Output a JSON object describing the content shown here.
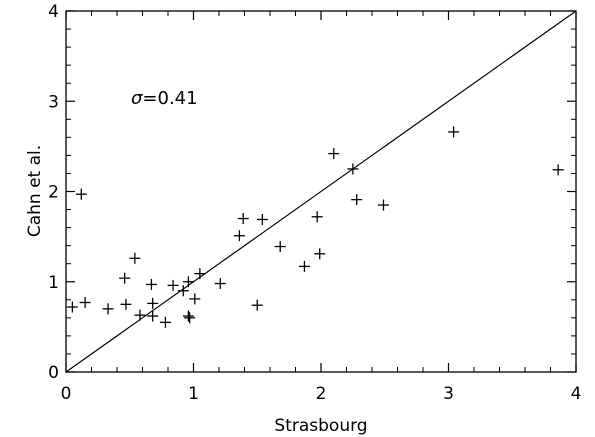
{
  "chart_data": {
    "type": "scatter",
    "xlabel": "Strasbourg",
    "ylabel": "Cahn et al.",
    "xlim": [
      0,
      4
    ],
    "ylim": [
      0,
      4
    ],
    "xticks": [
      "0",
      "1",
      "2",
      "3",
      "4"
    ],
    "yticks": [
      "0",
      "1",
      "2",
      "3",
      "4"
    ],
    "grid": false,
    "marker": "plus",
    "annotation": {
      "symbol": "σ",
      "text": "=0.41"
    },
    "reference_line": {
      "type": "identity",
      "from": [
        0,
        0
      ],
      "to": [
        4,
        4
      ]
    },
    "series": [
      {
        "points": [
          {
            "x": 0.05,
            "y": 0.72
          },
          {
            "x": 0.12,
            "y": 1.97
          },
          {
            "x": 0.15,
            "y": 0.77
          },
          {
            "x": 0.33,
            "y": 0.7
          },
          {
            "x": 0.46,
            "y": 1.04
          },
          {
            "x": 0.47,
            "y": 0.75
          },
          {
            "x": 0.54,
            "y": 1.26
          },
          {
            "x": 0.58,
            "y": 0.63
          },
          {
            "x": 0.67,
            "y": 0.97
          },
          {
            "x": 0.68,
            "y": 0.76
          },
          {
            "x": 0.68,
            "y": 0.62
          },
          {
            "x": 0.78,
            "y": 0.55
          },
          {
            "x": 0.84,
            "y": 0.96
          },
          {
            "x": 0.92,
            "y": 0.9
          },
          {
            "x": 0.96,
            "y": 1.0
          },
          {
            "x": 0.96,
            "y": 0.62
          },
          {
            "x": 0.97,
            "y": 0.6
          },
          {
            "x": 1.01,
            "y": 0.81
          },
          {
            "x": 1.05,
            "y": 1.09
          },
          {
            "x": 1.21,
            "y": 0.98
          },
          {
            "x": 1.36,
            "y": 1.51
          },
          {
            "x": 1.39,
            "y": 1.7
          },
          {
            "x": 1.5,
            "y": 0.74
          },
          {
            "x": 1.54,
            "y": 1.69
          },
          {
            "x": 1.68,
            "y": 1.39
          },
          {
            "x": 1.87,
            "y": 1.17
          },
          {
            "x": 1.97,
            "y": 1.72
          },
          {
            "x": 1.99,
            "y": 1.31
          },
          {
            "x": 2.1,
            "y": 2.42
          },
          {
            "x": 2.25,
            "y": 2.25
          },
          {
            "x": 2.28,
            "y": 1.91
          },
          {
            "x": 2.49,
            "y": 1.85
          },
          {
            "x": 3.04,
            "y": 2.66
          },
          {
            "x": 3.86,
            "y": 2.24
          }
        ]
      }
    ]
  }
}
